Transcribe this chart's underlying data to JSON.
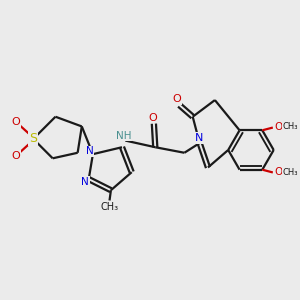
{
  "bg": "#ebebeb",
  "bc": "#1a1a1a",
  "Nc": "#0000dd",
  "Oc": "#cc0000",
  "Sc": "#bbbb00",
  "Hc": "#4a9090",
  "lw": 1.6,
  "fs": 7.5,
  "xlim": [
    0.0,
    10.5
  ],
  "ylim": [
    2.2,
    8.5
  ]
}
